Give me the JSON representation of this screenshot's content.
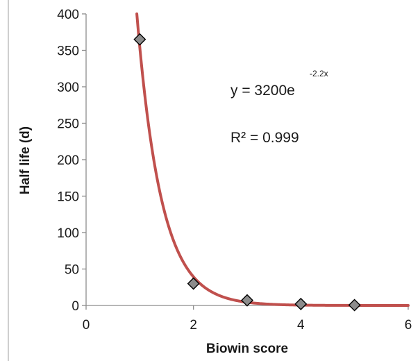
{
  "chart_data": {
    "type": "scatter",
    "title": "",
    "xlabel": "Biowin score",
    "ylabel": "Half life (d)",
    "xlim": [
      0,
      6
    ],
    "ylim": [
      0,
      400
    ],
    "x_ticks": [
      "0",
      "2",
      "4",
      "6"
    ],
    "y_ticks": [
      "0",
      "50",
      "100",
      "150",
      "200",
      "250",
      "300",
      "350",
      "400"
    ],
    "grid": false,
    "legend": "none",
    "series": [
      {
        "x": [
          1,
          2,
          3,
          4,
          5
        ],
        "y": [
          365,
          30,
          7,
          2,
          0.5
        ],
        "marker": "diamond",
        "color": "#8c8c8c"
      }
    ],
    "trendline": {
      "type": "exponential",
      "a": 3200,
      "b": -2.2,
      "color": "#c0504d"
    },
    "annotations": {
      "equation_main": "y = 3200e",
      "equation_exponent": "-2.2x",
      "r_squared": "R² = 0.999"
    }
  }
}
